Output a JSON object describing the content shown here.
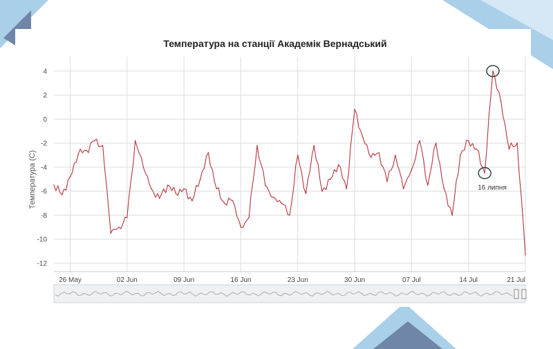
{
  "colors": {
    "series": "#b5323a",
    "grid": "#dcdcdc",
    "deco_blue": "#a9cfe9",
    "deco_navy": "#6f86a6",
    "navigator_fill": "#eef0f2",
    "navigator_line": "#a9adb3"
  },
  "chart_data": {
    "type": "line",
    "title": "Температура на станції Академік Вернадський",
    "xlabel": "",
    "ylabel": "Температура (С)",
    "ylim": [
      -12.7,
      5.2
    ],
    "y_ticks": [
      "4",
      "2",
      "0",
      "-2",
      "-4",
      "-6",
      "-8",
      "-10",
      "-12"
    ],
    "y_tick_values": [
      4,
      2,
      0,
      -2,
      -4,
      -6,
      -8,
      -10,
      -12
    ],
    "x_ticks": [
      "26 May",
      "02 Jun",
      "09 Jun",
      "16 Jun",
      "23 Jun",
      "30 Jun",
      "07 Jul",
      "14 Jul",
      "21 Jul"
    ],
    "x_tick_dates": [
      "2021-05-26",
      "2021-06-02",
      "2021-06-09",
      "2021-06-16",
      "2021-06-23",
      "2021-06-30",
      "2021-07-07",
      "2021-07-14",
      "2021-07-21"
    ],
    "xlim": [
      "2021-05-24",
      "2021-07-21"
    ],
    "grid": true,
    "legend": "none",
    "navigator": true,
    "series": [
      {
        "color": "#b5323a",
        "x": [
          "2021-05-24",
          "2021-05-25",
          "2021-05-26",
          "2021-05-27",
          "2021-05-28",
          "2021-05-29",
          "2021-05-30",
          "2021-05-31",
          "2021-06-01",
          "2021-06-02",
          "2021-06-03",
          "2021-06-04",
          "2021-06-05",
          "2021-06-06",
          "2021-06-07",
          "2021-06-08",
          "2021-06-09",
          "2021-06-10",
          "2021-06-11",
          "2021-06-12",
          "2021-06-13",
          "2021-06-14",
          "2021-06-15",
          "2021-06-16",
          "2021-06-17",
          "2021-06-18",
          "2021-06-19",
          "2021-06-20",
          "2021-06-21",
          "2021-06-22",
          "2021-06-23",
          "2021-06-24",
          "2021-06-25",
          "2021-06-26",
          "2021-06-27",
          "2021-06-28",
          "2021-06-29",
          "2021-06-30",
          "2021-07-01",
          "2021-07-02",
          "2021-07-03",
          "2021-07-04",
          "2021-07-05",
          "2021-07-06",
          "2021-07-07",
          "2021-07-08",
          "2021-07-09",
          "2021-07-10",
          "2021-07-11",
          "2021-07-12",
          "2021-07-13",
          "2021-07-14",
          "2021-07-15",
          "2021-07-16",
          "2021-07-17",
          "2021-07-18",
          "2021-07-19",
          "2021-07-20",
          "2021-07-21"
        ],
        "values": [
          -5.5,
          -6.3,
          -4.8,
          -2.9,
          -2.6,
          -1.8,
          -2.2,
          -9.5,
          -9.0,
          -8.2,
          -1.8,
          -4.0,
          -5.8,
          -6.6,
          -5.5,
          -6.2,
          -5.8,
          -6.8,
          -5.0,
          -2.8,
          -5.8,
          -7.0,
          -6.8,
          -9.0,
          -8.2,
          -2.2,
          -5.5,
          -6.5,
          -7.0,
          -8.0,
          -3.0,
          -6.2,
          -2.2,
          -6.0,
          -5.0,
          -3.8,
          -5.8,
          0.8,
          -1.5,
          -3.2,
          -2.8,
          -5.2,
          -3.0,
          -5.8,
          -4.2,
          -1.8,
          -5.5,
          -2.0,
          -5.8,
          -8.0,
          -3.0,
          -1.8,
          -2.5,
          -4.5,
          4.0,
          1.5,
          -2.5,
          -2.0,
          -11.3
        ]
      }
    ],
    "annotations": [
      {
        "text": "16 липня",
        "x": "2021-07-16",
        "y": -4.5
      },
      {
        "text": "",
        "x": "2021-07-17",
        "y": 4.0
      }
    ]
  }
}
